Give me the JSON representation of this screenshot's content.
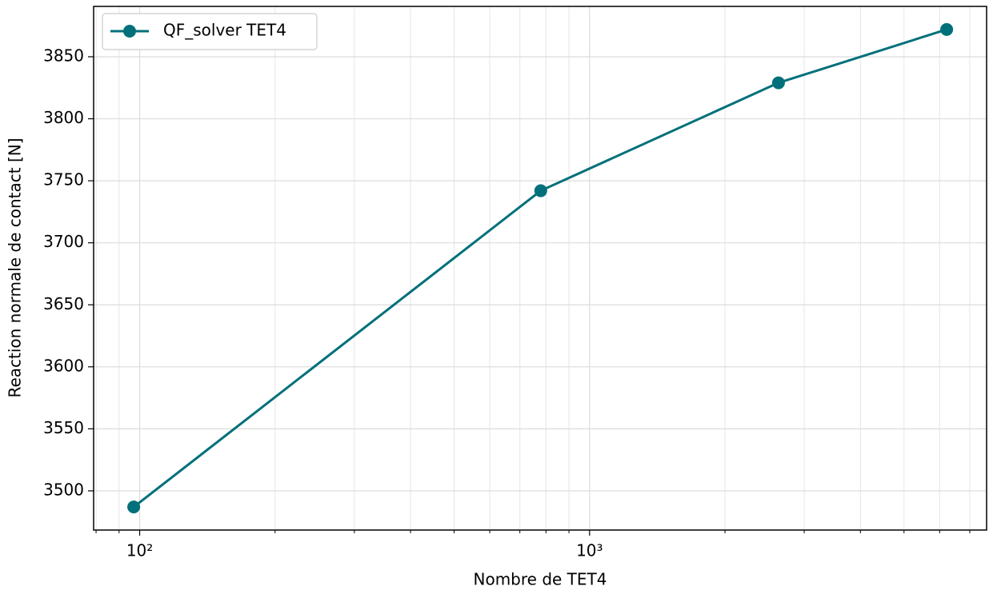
{
  "chart_data": {
    "type": "line",
    "x_label": "Nombre de TET4",
    "y_label": "Reaction normale de contact [N]",
    "x": [
      97,
      779,
      2630,
      6220
    ],
    "series": [
      {
        "name": "QF_solver TET4",
        "color": "#00707a",
        "values": [
          3487,
          3742,
          3829,
          3872
        ]
      }
    ],
    "x_scale": "log",
    "xlim": [
      79,
      7630
    ],
    "xticks": [
      {
        "value": 100,
        "label": "10²"
      },
      {
        "value": 1000,
        "label": "10³"
      }
    ],
    "xminorticks": [
      80,
      90,
      200,
      300,
      400,
      500,
      600,
      700,
      800,
      900,
      2000,
      3000,
      4000,
      5000,
      6000,
      7000
    ],
    "ylim": [
      3468.4,
      3890.6
    ],
    "yticks": [
      3500,
      3550,
      3600,
      3650,
      3700,
      3750,
      3800,
      3850
    ],
    "grid": true,
    "legend": "upper left"
  }
}
